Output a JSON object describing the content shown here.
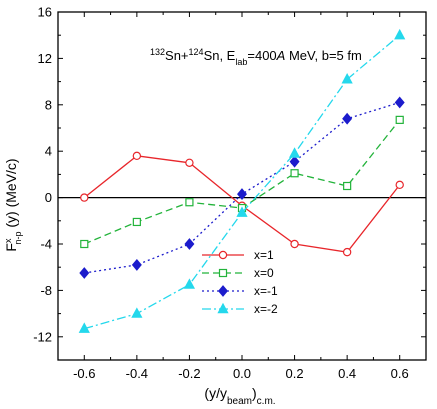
{
  "chart_data": {
    "type": "line",
    "annotation": {
      "sup_a": "132",
      "part_a": "Sn+",
      "sup_b": "124",
      "part_b": "Sn, E",
      "sub_lab": "lab",
      "part_c": "=400",
      "italic_a": "A",
      "part_d": " MeV, b=5 fm"
    },
    "xlabel": {
      "main": "(y/y",
      "sub_beam": "beam",
      "close": ")",
      "sub_cm": "c.m."
    },
    "ylabel": {
      "main": "F",
      "sup": "x",
      "sub": "n-p",
      "rest": " (y) (MeV/c)"
    },
    "xlim": [
      -0.7,
      0.7
    ],
    "ylim": [
      -14,
      16
    ],
    "xticks": [
      -0.6,
      -0.4,
      -0.2,
      0.0,
      0.2,
      0.4,
      0.6
    ],
    "xtick_labels": [
      "-0.6",
      "-0.4",
      "-0.2",
      "0.0",
      "0.2",
      "0.4",
      "0.6"
    ],
    "yticks": [
      -12,
      -8,
      -4,
      0,
      4,
      8,
      12,
      16
    ],
    "ytick_labels": [
      "-12",
      "-8",
      "-4",
      "0",
      "4",
      "8",
      "12",
      "16"
    ],
    "zero_line": true,
    "grid": false,
    "legend_position": "bottom-center",
    "x": [
      -0.6,
      -0.4,
      -0.2,
      0.0,
      0.2,
      0.4,
      0.6
    ],
    "series": [
      {
        "name": "x=1",
        "values": [
          0.0,
          3.6,
          3.0,
          -0.7,
          -4.0,
          -4.7,
          1.1
        ],
        "color": "#e8262b",
        "marker": "circle-open",
        "dash": "solid"
      },
      {
        "name": "x=0",
        "values": [
          -4.0,
          -2.1,
          -0.4,
          -0.9,
          2.1,
          1.0,
          6.7
        ],
        "color": "#22b33a",
        "marker": "square-open",
        "dash": "dash"
      },
      {
        "name": "x=-1",
        "values": [
          -6.5,
          -5.8,
          -4.0,
          0.3,
          3.1,
          6.8,
          8.2
        ],
        "color": "#1c1ccc",
        "marker": "diamond-filled",
        "dash": "dot"
      },
      {
        "name": "x=-2",
        "values": [
          -11.3,
          -10.0,
          -7.5,
          -1.3,
          3.8,
          10.2,
          14.0
        ],
        "color": "#24d8ec",
        "marker": "triangle-filled",
        "dash": "dashdot"
      }
    ]
  }
}
